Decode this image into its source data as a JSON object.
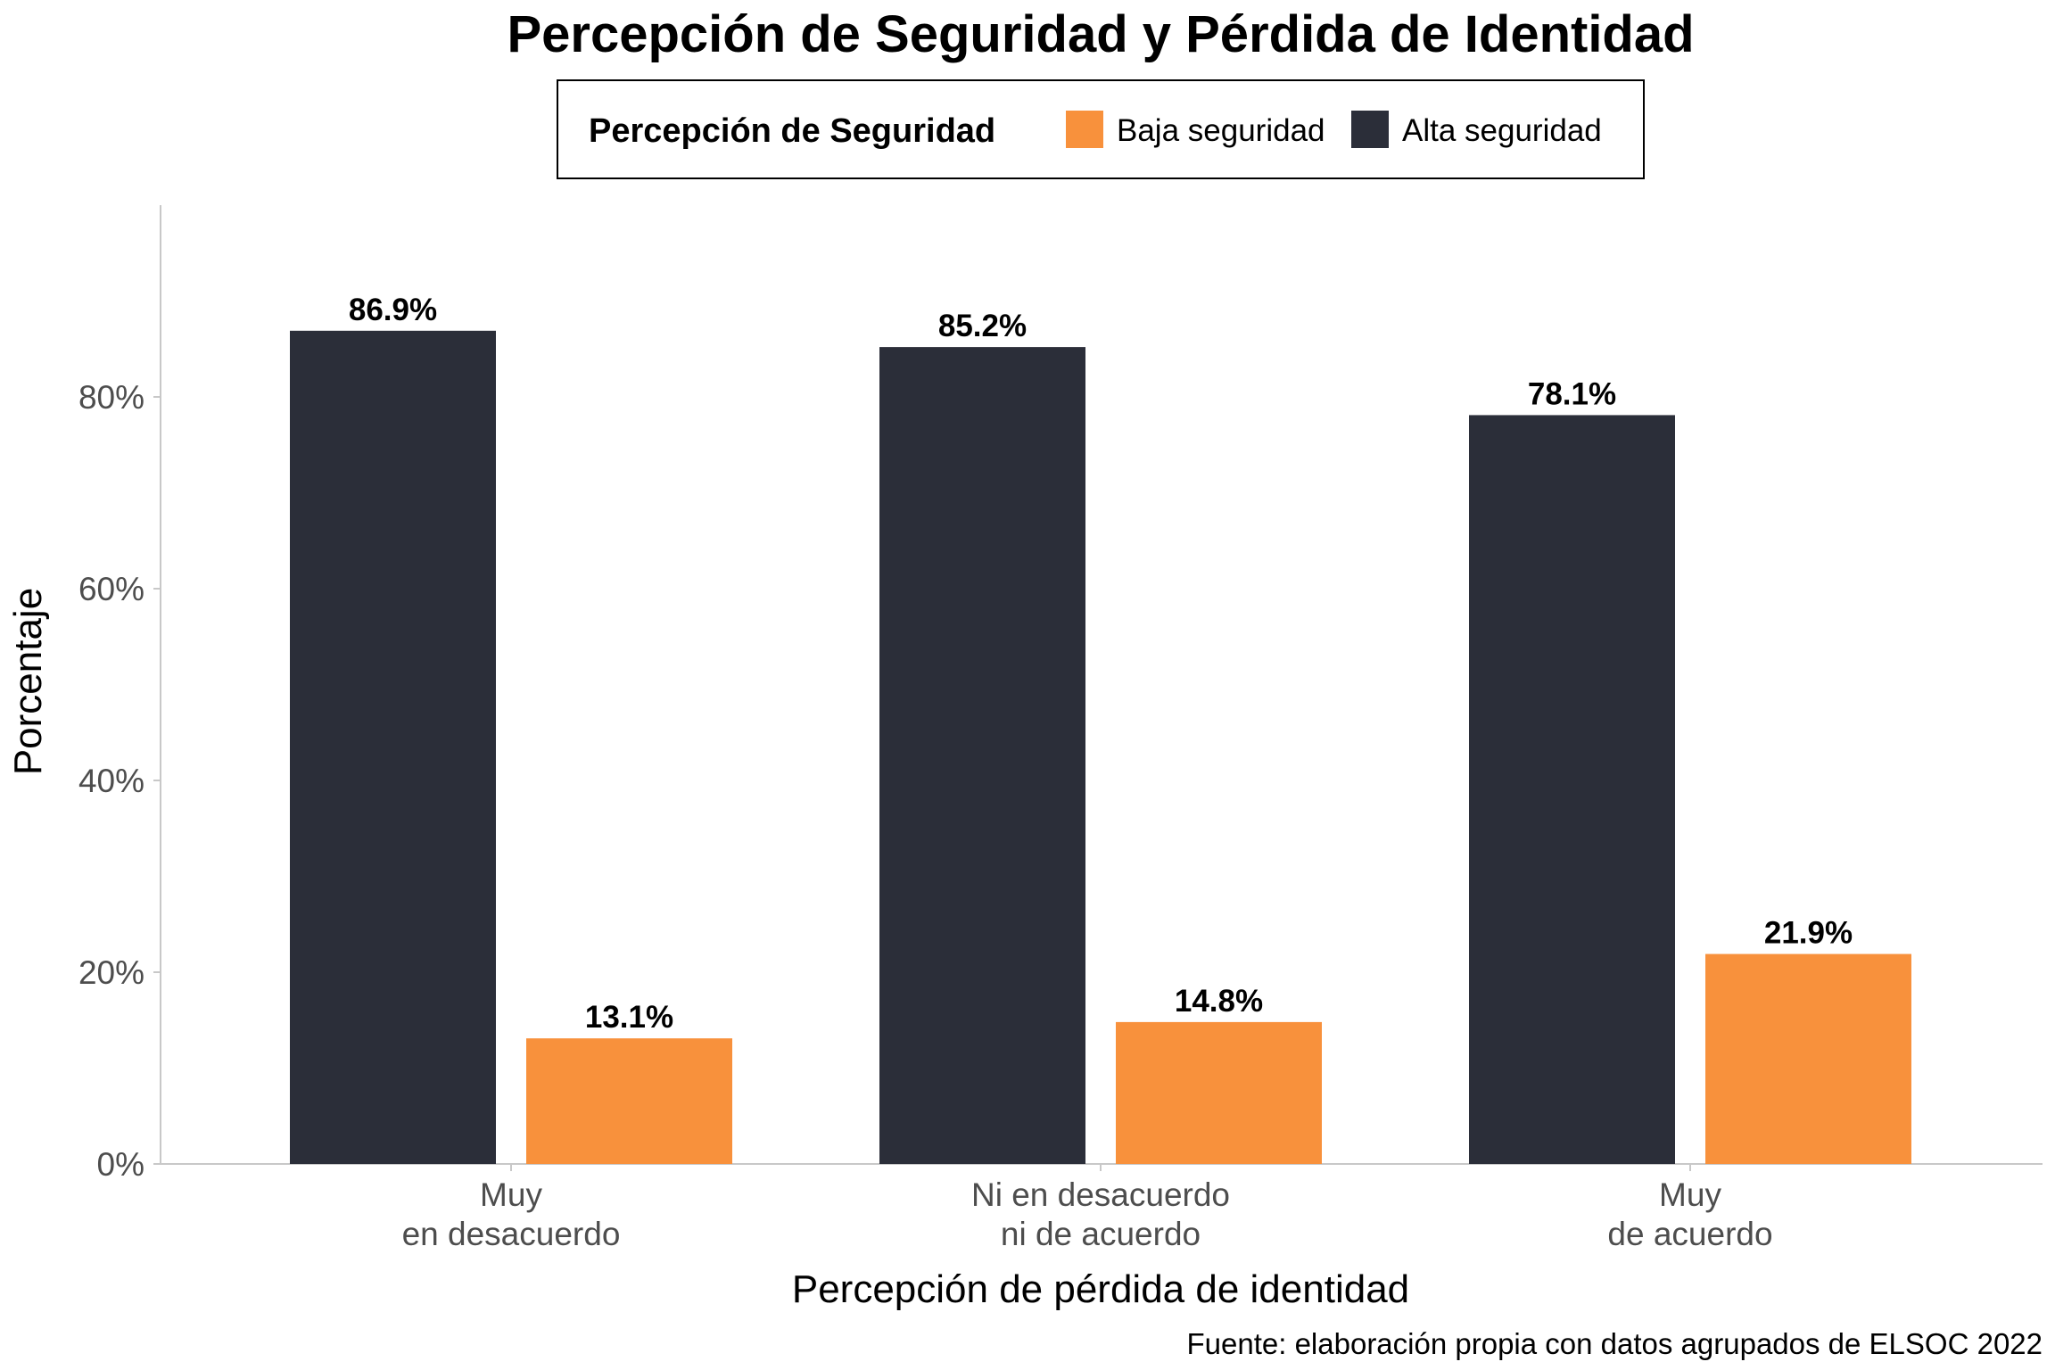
{
  "chart_data": {
    "type": "bar",
    "title": "Percepción de Seguridad y Pérdida de Identidad",
    "xlabel": "Percepción de pérdida de identidad",
    "ylabel": "Porcentaje",
    "caption": "Fuente: elaboración propia con datos agrupados de ELSOC 2022",
    "ylim": [
      0,
      100
    ],
    "yticks": [
      0,
      20,
      40,
      60,
      80
    ],
    "ytick_labels": [
      "0%",
      "20%",
      "40%",
      "60%",
      "80%"
    ],
    "grid": false,
    "legend": {
      "title": "Percepción de Seguridad",
      "position": "top",
      "entries": [
        "Baja seguridad",
        "Alta seguridad"
      ]
    },
    "categories": [
      [
        "Muy",
        "en desacuerdo"
      ],
      [
        "Ni en desacuerdo",
        "ni de acuerdo"
      ],
      [
        "Muy",
        "de acuerdo"
      ]
    ],
    "series": [
      {
        "name": "Baja seguridad",
        "color": "#F8913C",
        "values": [
          13.1,
          14.8,
          21.9
        ],
        "labels": [
          "13.1%",
          "14.8%",
          "21.9%"
        ]
      },
      {
        "name": "Alta seguridad",
        "color": "#2B2E39",
        "values": [
          86.9,
          85.2,
          78.1
        ],
        "labels": [
          "86.9%",
          "85.2%",
          "78.1%"
        ]
      }
    ]
  }
}
